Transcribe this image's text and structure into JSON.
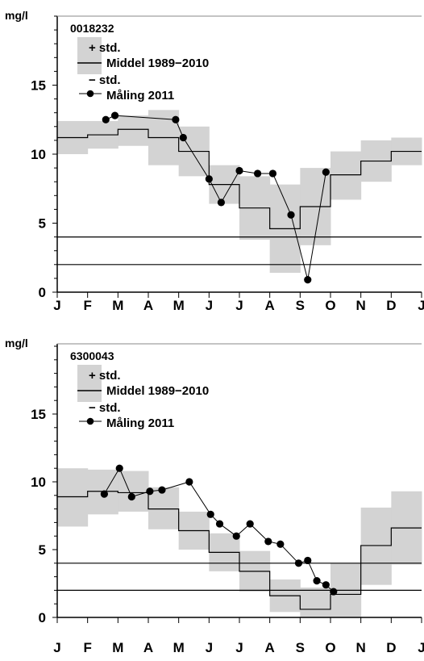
{
  "chart_data": [
    {
      "type": "line",
      "station": "0018232",
      "unit": "mg/l",
      "ylim": [
        0,
        20
      ],
      "yticks": [
        0,
        5,
        10,
        15
      ],
      "months": [
        "J",
        "F",
        "M",
        "A",
        "M",
        "J",
        "J",
        "A",
        "S",
        "O",
        "N",
        "D",
        "J"
      ],
      "legend": {
        "plus_std": "+ std.",
        "mean": "Middel 1989−2010",
        "minus_std": "− std.",
        "measure": "Måling 2011"
      },
      "reference_lines": [
        4,
        2
      ],
      "mean_monthly": [
        11.2,
        11.4,
        11.8,
        11.2,
        10.2,
        7.8,
        6.1,
        4.6,
        6.2,
        8.5,
        9.5,
        10.2
      ],
      "upper_monthly": [
        12.4,
        12.4,
        12.8,
        13.2,
        12.0,
        9.2,
        8.4,
        7.8,
        9.0,
        10.2,
        11.0,
        11.2
      ],
      "lower_monthly": [
        10.0,
        10.4,
        10.6,
        9.2,
        8.4,
        6.4,
        3.8,
        1.4,
        3.4,
        6.7,
        8.0,
        9.2
      ],
      "measurements": [
        {
          "t": 1.6,
          "v": 12.5
        },
        {
          "t": 1.9,
          "v": 12.8
        },
        {
          "t": 3.9,
          "v": 12.5
        },
        {
          "t": 4.15,
          "v": 11.2
        },
        {
          "t": 5.0,
          "v": 8.2
        },
        {
          "t": 5.4,
          "v": 6.5
        },
        {
          "t": 6.0,
          "v": 8.8
        },
        {
          "t": 6.6,
          "v": 8.6
        },
        {
          "t": 7.1,
          "v": 8.6
        },
        {
          "t": 7.7,
          "v": 5.6
        },
        {
          "t": 8.25,
          "v": 0.9
        },
        {
          "t": 8.85,
          "v": 8.7
        }
      ]
    },
    {
      "type": "line",
      "station": "6300043",
      "unit": "mg/l",
      "ylim": [
        0,
        20
      ],
      "yticks": [
        0,
        5,
        10,
        15
      ],
      "months": [
        "J",
        "F",
        "M",
        "A",
        "M",
        "J",
        "J",
        "A",
        "S",
        "O",
        "N",
        "D",
        "J"
      ],
      "legend": {
        "plus_std": "+ std.",
        "mean": "Middel 1989−2010",
        "minus_std": "− std.",
        "measure": "Måling 2011"
      },
      "reference_lines": [
        4,
        2
      ],
      "mean_monthly": [
        8.9,
        9.3,
        9.2,
        8.0,
        6.4,
        4.8,
        3.4,
        1.6,
        0.6,
        1.7,
        5.3,
        6.6
      ],
      "upper_monthly": [
        11.0,
        10.9,
        10.8,
        9.6,
        7.8,
        6.2,
        4.9,
        2.8,
        2.2,
        4.0,
        8.1,
        9.3
      ],
      "lower_monthly": [
        6.7,
        7.6,
        7.8,
        6.5,
        5.0,
        3.4,
        1.9,
        0.4,
        0.0,
        0.0,
        2.4,
        3.9
      ],
      "measurements": [
        {
          "t": 1.55,
          "v": 9.1
        },
        {
          "t": 2.05,
          "v": 11.0
        },
        {
          "t": 2.45,
          "v": 8.9
        },
        {
          "t": 3.05,
          "v": 9.3
        },
        {
          "t": 3.45,
          "v": 9.4
        },
        {
          "t": 4.35,
          "v": 10.0
        },
        {
          "t": 5.05,
          "v": 7.6
        },
        {
          "t": 5.35,
          "v": 6.9
        },
        {
          "t": 5.9,
          "v": 6.0
        },
        {
          "t": 6.35,
          "v": 6.9
        },
        {
          "t": 6.95,
          "v": 5.6
        },
        {
          "t": 7.35,
          "v": 5.4
        },
        {
          "t": 7.95,
          "v": 4.0
        },
        {
          "t": 8.25,
          "v": 4.2
        },
        {
          "t": 8.55,
          "v": 2.7
        },
        {
          "t": 8.85,
          "v": 2.4
        },
        {
          "t": 9.1,
          "v": 1.9
        }
      ]
    }
  ]
}
